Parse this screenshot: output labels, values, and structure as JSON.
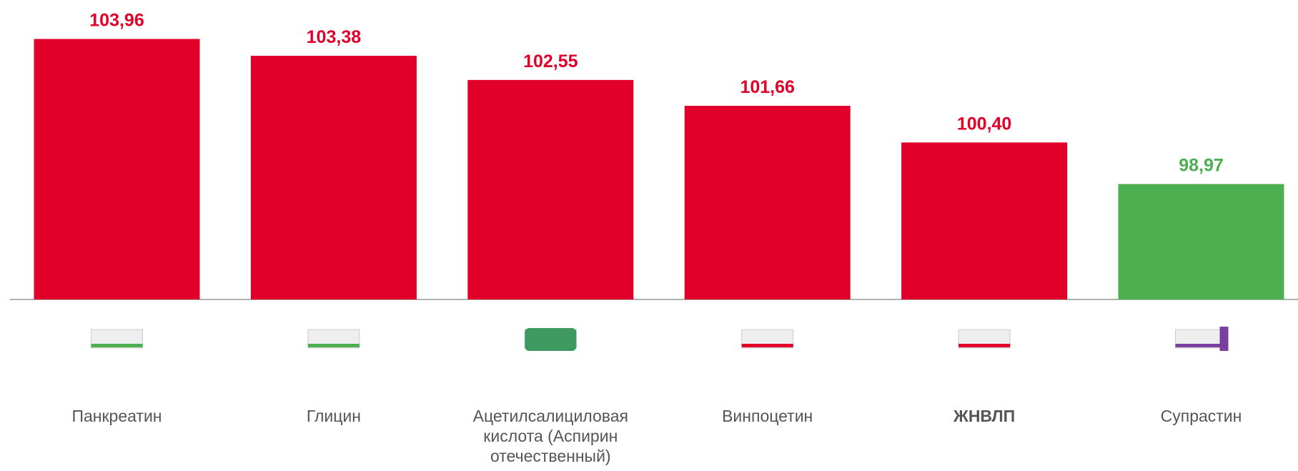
{
  "chart_data": {
    "type": "bar",
    "categories": [
      "Панкреатин",
      "Глицин",
      "Ацетилсалициловая кислота (Аспирин отечественный)",
      "Винпоцетин",
      "ЖНВЛП",
      "Супрастин"
    ],
    "values": [
      103.96,
      103.38,
      102.55,
      101.66,
      100.4,
      98.97
    ],
    "value_labels": [
      "103,96",
      "103,38",
      "102,55",
      "101,66",
      "100,40",
      "98,97"
    ],
    "colors": [
      "#e0002a",
      "#e0002a",
      "#e0002a",
      "#e0002a",
      "#e0002a",
      "#4caf50"
    ],
    "ylim": [
      95,
      105.3
    ]
  }
}
